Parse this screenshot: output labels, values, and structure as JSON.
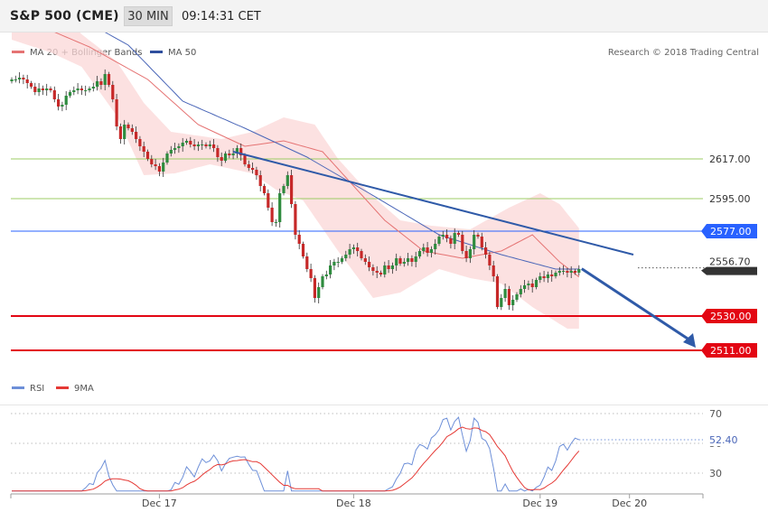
{
  "header": {
    "symbol": "S&P 500 (CME)",
    "interval": "30 MIN",
    "time": "09:14:31 CET"
  },
  "legend": {
    "bb_label": "MA 20 + Bollinger Bands",
    "ma50_label": "MA 50",
    "credit": "Research © 2018 Trading Central"
  },
  "rsi_legend": {
    "rsi_label": "RSI",
    "ma9_label": "9MA"
  },
  "colors": {
    "up": "#2e8b3e",
    "down": "#c62828",
    "ma20": "#e57373",
    "bb_fill": "#fbd7d7",
    "ma50": "#4a66b8",
    "trend": "#2f5aa8",
    "support": "#e30613",
    "resistance": "#8bc34a",
    "pivot": "#2962ff",
    "rsi": "#6d8fd8",
    "rsi_ma": "#e53935"
  },
  "levels": [
    {
      "value": 2617.0,
      "label": "2617.00",
      "kind": "resistance"
    },
    {
      "value": 2595.0,
      "label": "2595.00",
      "kind": "resistance"
    },
    {
      "value": 2577.0,
      "label": "2577.00",
      "kind": "pivot"
    },
    {
      "value": 2530.0,
      "label": "2530.00",
      "kind": "support"
    },
    {
      "value": 2511.0,
      "label": "2511.00",
      "kind": "support"
    }
  ],
  "last_price": {
    "value": 2556.7,
    "label": "2556.70"
  },
  "rsi_last": {
    "value": 52.4,
    "label": "52.40"
  },
  "chart_data": {
    "type": "candlestick",
    "price_range": [
      2497,
      2702
    ],
    "date_labels": [
      "Dec 17",
      "Dec 18",
      "Dec 19",
      "Dec 20"
    ],
    "x_date_marks": [
      {
        "label": "Dec 17",
        "bar": 38
      },
      {
        "label": "Dec 18",
        "bar": 88
      },
      {
        "label": "Dec 19",
        "bar": 136
      },
      {
        "label": "Dec 20",
        "bar": 159
      }
    ],
    "close": [
      2661,
      2661,
      2662,
      2661,
      2659,
      2657,
      2654,
      2656,
      2655,
      2656,
      2655,
      2650,
      2646,
      2647,
      2652,
      2654,
      2655,
      2656,
      2655,
      2655,
      2656,
      2657,
      2660,
      2658,
      2664,
      2658,
      2650,
      2635,
      2628,
      2636,
      2634,
      2632,
      2628,
      2624,
      2621,
      2617,
      2614,
      2613,
      2610,
      2615,
      2620,
      2622,
      2623,
      2624,
      2626,
      2627,
      2625,
      2624,
      2625,
      2625,
      2624,
      2625,
      2623,
      2618,
      2616,
      2620,
      2619,
      2620,
      2623,
      2619,
      2614,
      2612,
      2611,
      2608,
      2602,
      2598,
      2590,
      2582,
      2582,
      2598,
      2602,
      2608,
      2592,
      2575,
      2570,
      2563,
      2556,
      2551,
      2540,
      2546,
      2552,
      2553,
      2558,
      2560,
      2560,
      2562,
      2564,
      2567,
      2568,
      2566,
      2562,
      2560,
      2557,
      2555,
      2554,
      2553,
      2558,
      2556,
      2558,
      2562,
      2559,
      2560,
      2562,
      2560,
      2563,
      2566,
      2568,
      2565,
      2567,
      2570,
      2574,
      2575,
      2573,
      2570,
      2576,
      2575,
      2566,
      2562,
      2567,
      2575,
      2574,
      2568,
      2564,
      2558,
      2552,
      2535,
      2540,
      2545,
      2536,
      2539,
      2542,
      2545,
      2547,
      2548,
      2546,
      2550,
      2552,
      2551,
      2553,
      2552,
      2554,
      2555,
      2555,
      2554,
      2555,
      2554,
      2556
    ],
    "ma20_points": [
      [
        0,
        2700
      ],
      [
        8,
        2690
      ],
      [
        20,
        2679
      ],
      [
        35,
        2661
      ],
      [
        48,
        2636
      ],
      [
        60,
        2624
      ],
      [
        70,
        2627
      ],
      [
        80,
        2621
      ],
      [
        88,
        2602
      ],
      [
        96,
        2583
      ],
      [
        106,
        2566
      ],
      [
        116,
        2562
      ],
      [
        126,
        2566
      ],
      [
        134,
        2575
      ],
      [
        141,
        2560
      ],
      [
        147,
        2550
      ],
      [
        153,
        2547
      ],
      [
        160,
        2547
      ]
    ],
    "bb_upper_points": [
      [
        0,
        2720
      ],
      [
        10,
        2706
      ],
      [
        18,
        2686
      ],
      [
        27,
        2671
      ],
      [
        34,
        2648
      ],
      [
        41,
        2632
      ],
      [
        54,
        2628
      ],
      [
        62,
        2632
      ],
      [
        70,
        2640
      ],
      [
        78,
        2636
      ],
      [
        84,
        2617
      ],
      [
        92,
        2598
      ],
      [
        100,
        2583
      ],
      [
        108,
        2580
      ],
      [
        118,
        2578
      ],
      [
        128,
        2590
      ],
      [
        136,
        2598
      ],
      [
        141,
        2592
      ],
      [
        150,
        2568
      ],
      [
        160,
        2563
      ]
    ],
    "bb_lower_points": [
      [
        0,
        2683
      ],
      [
        10,
        2676
      ],
      [
        18,
        2668
      ],
      [
        27,
        2641
      ],
      [
        34,
        2608
      ],
      [
        42,
        2609
      ],
      [
        51,
        2614
      ],
      [
        62,
        2609
      ],
      [
        68,
        2600
      ],
      [
        75,
        2594
      ],
      [
        84,
        2566
      ],
      [
        93,
        2540
      ],
      [
        100,
        2543
      ],
      [
        110,
        2556
      ],
      [
        118,
        2551
      ],
      [
        126,
        2548
      ],
      [
        134,
        2535
      ],
      [
        143,
        2523
      ],
      [
        150,
        2523
      ],
      [
        156,
        2535
      ],
      [
        160,
        2530
      ]
    ],
    "ma50_points": [
      [
        0,
        2712
      ],
      [
        15,
        2698
      ],
      [
        30,
        2680
      ],
      [
        44,
        2649
      ],
      [
        60,
        2634
      ],
      [
        76,
        2618
      ],
      [
        92,
        2598
      ],
      [
        110,
        2575
      ],
      [
        126,
        2564
      ],
      [
        140,
        2556
      ],
      [
        152,
        2556
      ],
      [
        160,
        2556
      ]
    ],
    "trendline": {
      "from": {
        "bar": 57,
        "price": 2621
      },
      "to": {
        "bar": 160,
        "price": 2564
      },
      "projection_to": 2511
    },
    "rsi": {
      "range": [
        15,
        85
      ],
      "ticks": [
        70,
        50,
        30
      ],
      "last": 52.4
    }
  }
}
